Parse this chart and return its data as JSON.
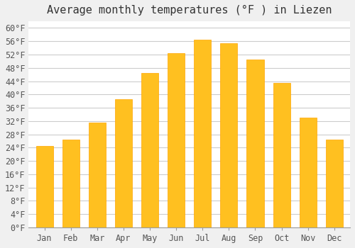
{
  "title": "Average monthly temperatures (°F ) in Liezen",
  "months": [
    "Jan",
    "Feb",
    "Mar",
    "Apr",
    "May",
    "Jun",
    "Jul",
    "Aug",
    "Sep",
    "Oct",
    "Nov",
    "Dec"
  ],
  "values": [
    24.5,
    26.5,
    31.5,
    38.5,
    46.5,
    52.5,
    56.5,
    55.5,
    50.5,
    43.5,
    33.0,
    26.5
  ],
  "bar_color_face": "#FFC020",
  "bar_color_edge": "#FFA500",
  "background_color": "#F0F0F0",
  "plot_bg_color": "#FFFFFF",
  "grid_color": "#CCCCCC",
  "ylim": [
    0,
    62
  ],
  "ytick_step": 4,
  "title_fontsize": 11,
  "tick_fontsize": 8.5,
  "title_font": "monospace",
  "tick_font": "monospace"
}
